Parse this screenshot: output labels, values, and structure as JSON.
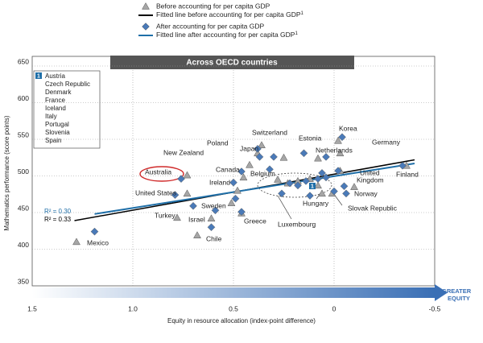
{
  "chart_data": {
    "type": "scatter",
    "title": "Across OECD countries",
    "xlabel": "Equity in resource allocation (index-point difference)",
    "ylabel": "Mathematics performance (score points)",
    "xlim": [
      1.5,
      -0.5
    ],
    "ylim": [
      350,
      650
    ],
    "xticks": [
      1.5,
      {
        "value": 1,
        "label": "1.0"
      },
      0.5,
      0,
      -0.5
    ],
    "yticks": [
      350,
      400,
      450,
      500,
      550,
      600,
      650
    ],
    "grid": true,
    "series": [
      {
        "name": "Before accounting for per capita GDP",
        "marker": "triangle",
        "color": "#a6a6a6",
        "x": [
          1.28,
          0.78,
          0.68,
          0.61,
          0.46,
          0.51,
          0.73,
          0.73,
          0.48,
          0.42,
          0.38,
          0.36,
          0.25,
          0.28,
          -0.02,
          0.08,
          -0.03,
          -0.03,
          -0.1,
          -0.36,
          0.06,
          0.01,
          0.23,
          0.18,
          0.12,
          0.08,
          0.45
        ],
        "y": [
          410,
          443,
          419,
          442,
          449,
          463,
          476,
          501,
          480,
          515,
          531,
          542,
          525,
          495,
          548,
          524,
          531,
          507,
          485,
          514,
          476,
          476,
          490,
          493,
          496,
          487,
          498
        ]
      },
      {
        "name": "After accounting for per capita GDP",
        "marker": "diamond",
        "color": "#4a7ab8",
        "x": [
          1.19,
          0.7,
          0.61,
          0.59,
          0.46,
          0.49,
          0.5,
          0.79,
          0.76,
          0.46,
          0.37,
          0.38,
          0.3,
          -0.04,
          0.04,
          -0.02,
          -0.05,
          -0.06,
          -0.34,
          0.12,
          0.0,
          0.26,
          0.22,
          0.18,
          0.14,
          0.08,
          0.06,
          0.04,
          0.32,
          0.15
        ],
        "y": [
          424,
          459,
          430,
          453,
          451,
          469,
          491,
          474,
          496,
          506,
          526,
          537,
          526,
          553,
          526,
          507,
          486,
          476,
          514,
          473,
          479,
          476,
          490,
          487,
          493,
          496,
          504,
          498,
          509,
          531
        ]
      }
    ],
    "fits": [
      {
        "name": "Fitted line before accounting for per capita GDP",
        "footnote": "1",
        "color": "#000000",
        "x": [
          1.29,
          -0.4
        ],
        "y": [
          439,
          522
        ],
        "r2_label": "R² = 0.33"
      },
      {
        "name": "Fitted line after accounting for per capita GDP",
        "footnote": "1",
        "color": "#1f6fa8",
        "x": [
          1.19,
          -0.4
        ],
        "y": [
          448,
          517
        ],
        "r2_label": "R² = 0.30"
      }
    ],
    "annotations": [
      "Mexico",
      "Turkey",
      "Chile",
      "Israel",
      "Greece",
      "Sweden",
      "United States",
      "Australia",
      "New Zealand",
      "Ireland",
      "Canada",
      "Poland",
      "Japan",
      "Switzerland",
      "Belgium",
      "Estonia",
      "Korea",
      "Netherlands",
      "Germany",
      "United",
      "Kingdom",
      "Norway",
      "Finland",
      "Hungary",
      "Slovak Republic",
      "Luxembourg"
    ],
    "inset": {
      "marker": "1",
      "countries": [
        "Austria",
        "Czech Republic",
        "Denmark",
        "France",
        "Iceland",
        "Italy",
        "Portugal",
        "Slovenia",
        "Spain"
      ]
    },
    "arrow_label": [
      "GREATER",
      "EQUITY"
    ]
  }
}
